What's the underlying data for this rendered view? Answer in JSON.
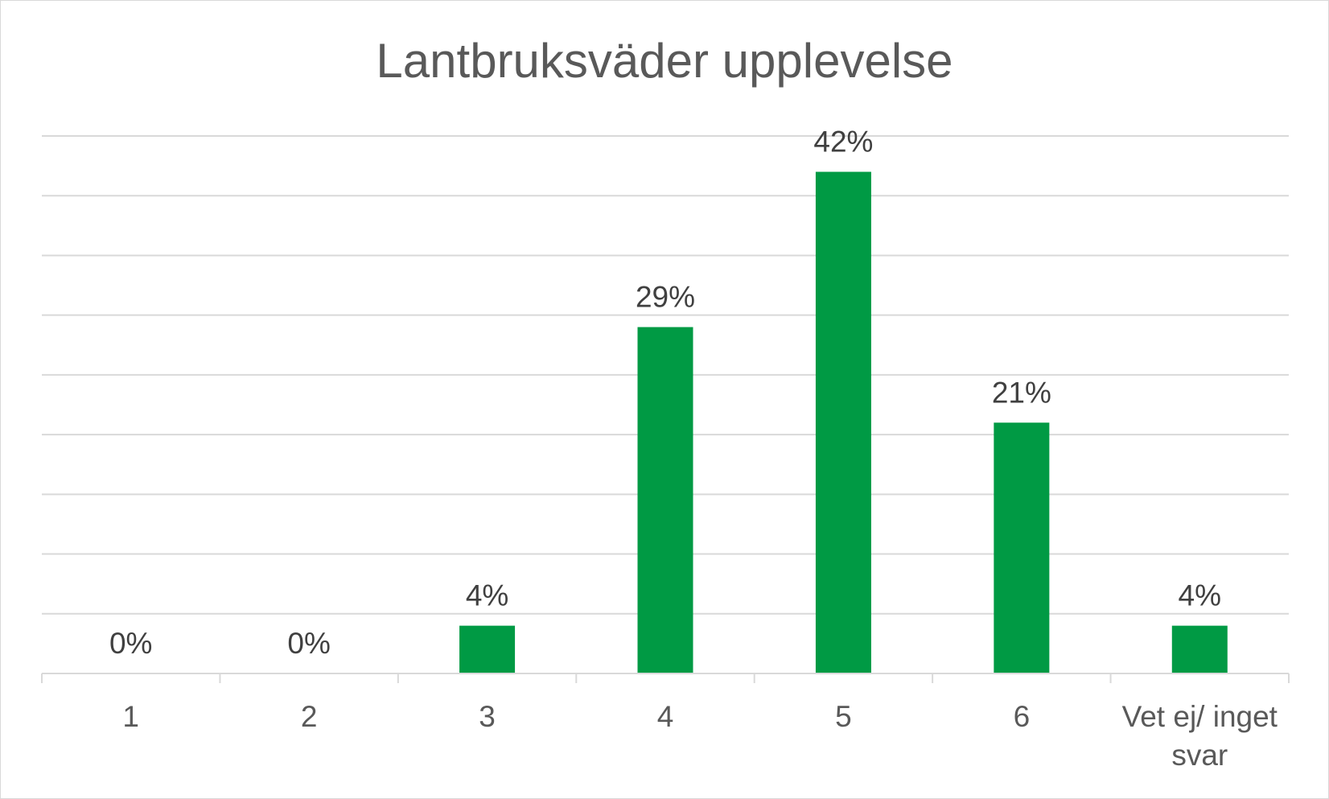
{
  "chart_data": {
    "type": "bar",
    "title": "Lantbruksväder upplevelse",
    "xlabel": "",
    "ylabel": "",
    "categories": [
      "1",
      "2",
      "3",
      "4",
      "5",
      "6",
      "Vet ej/ inget svar"
    ],
    "values": [
      0,
      0,
      4,
      29,
      42,
      21,
      4
    ],
    "value_labels": [
      "0%",
      "0%",
      "4%",
      "29%",
      "42%",
      "21%",
      "4%"
    ],
    "unit": "%",
    "ylim": [
      0,
      45
    ],
    "y_gridline_step": 5,
    "grid": true,
    "y_axis_labels_visible": false,
    "legend": "none",
    "bar_color": "#009A44"
  }
}
